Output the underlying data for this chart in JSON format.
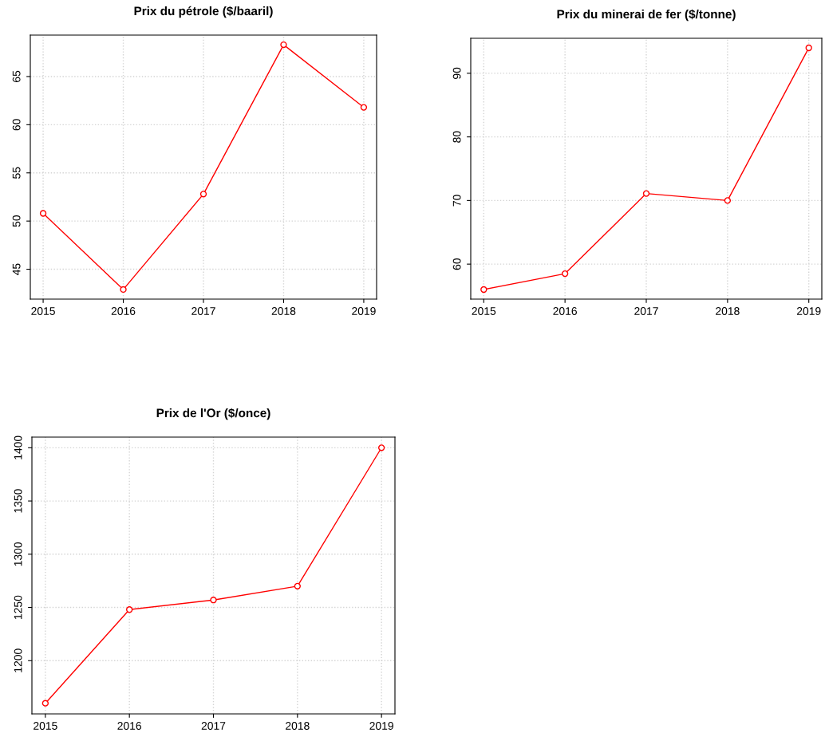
{
  "chart_data": [
    {
      "type": "line",
      "title": "Prix du pétrole ($/baaril)",
      "x": [
        2015,
        2016,
        2017,
        2018,
        2019
      ],
      "series": [
        {
          "color": "#ff0000",
          "values": [
            50.8,
            42.9,
            52.8,
            68.3,
            61.8
          ]
        }
      ],
      "xlim": [
        2014.84,
        2019.16
      ],
      "xticks": [
        2015,
        2016,
        2017,
        2018,
        2019
      ],
      "ylim": [
        41.9,
        69.3
      ],
      "yticks": [
        45,
        50,
        55,
        60,
        65
      ],
      "grid": true,
      "marker": "circle",
      "line_style": "solid"
    },
    {
      "type": "line",
      "title": "Prix du minerai de fer ($/tonne)",
      "x": [
        2015,
        2016,
        2017,
        2018,
        2019
      ],
      "series": [
        {
          "color": "#ff0000",
          "values": [
            56,
            58.5,
            71.1,
            70,
            94
          ]
        }
      ],
      "xlim": [
        2014.84,
        2019.16
      ],
      "xticks": [
        2015,
        2016,
        2017,
        2018,
        2019
      ],
      "ylim": [
        54.5,
        95.5
      ],
      "yticks": [
        60,
        70,
        80,
        90
      ],
      "grid": true,
      "marker": "circle",
      "line_style": "solid"
    },
    {
      "type": "line",
      "title": "Prix de l'Or ($/once)",
      "x": [
        2015,
        2016,
        2017,
        2018,
        2019
      ],
      "series": [
        {
          "color": "#ff0000",
          "values": [
            1160,
            1248,
            1257,
            1270,
            1400
          ]
        }
      ],
      "xlim": [
        2014.84,
        2019.16
      ],
      "xticks": [
        2015,
        2016,
        2017,
        2018,
        2019
      ],
      "ylim": [
        1150,
        1410
      ],
      "yticks": [
        1200,
        1250,
        1300,
        1350,
        1400
      ],
      "grid": true,
      "marker": "circle",
      "line_style": "solid"
    }
  ]
}
